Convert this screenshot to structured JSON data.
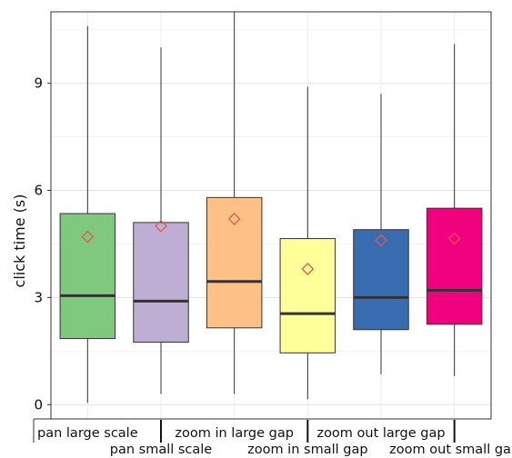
{
  "chart_data": {
    "type": "box",
    "title": "",
    "xlabel": "",
    "ylabel": "click time (s)",
    "ylim": [
      -0.4,
      11.0
    ],
    "yticks": [
      0,
      3,
      6,
      9
    ],
    "ytick_labels": [
      "0",
      "3",
      "6",
      "9"
    ],
    "grid": true,
    "legend": "none",
    "categories": [
      "pan large scale",
      "pan small scale",
      "zoom in large gap",
      "zoom in small gap",
      "zoom out large gap",
      "zoom out small gap"
    ],
    "boxes": [
      {
        "category": "pan large scale",
        "whisker_low": 0.05,
        "q1": 1.85,
        "median": 3.05,
        "q3": 5.35,
        "whisker_high": 10.6,
        "mean": 4.7,
        "color": "#7FC97F"
      },
      {
        "category": "pan small scale",
        "whisker_low": 0.3,
        "q1": 1.75,
        "median": 2.9,
        "q3": 5.1,
        "whisker_high": 10.0,
        "mean": 5.0,
        "color": "#BEAED4"
      },
      {
        "category": "zoom in large gap",
        "whisker_low": 0.3,
        "q1": 2.15,
        "median": 3.45,
        "q3": 5.8,
        "whisker_high": 11.0,
        "mean": 5.2,
        "color": "#FDC086"
      },
      {
        "category": "zoom in small gap",
        "whisker_low": 0.15,
        "q1": 1.45,
        "median": 2.55,
        "q3": 4.65,
        "whisker_high": 8.9,
        "mean": 3.8,
        "color": "#FFFF99"
      },
      {
        "category": "zoom out large gap",
        "whisker_low": 0.85,
        "q1": 2.1,
        "median": 3.0,
        "q3": 4.9,
        "whisker_high": 8.7,
        "mean": 4.6,
        "color": "#386CB0"
      },
      {
        "category": "zoom out small gap",
        "whisker_low": 0.8,
        "q1": 2.25,
        "median": 3.2,
        "q3": 5.5,
        "whisker_high": 10.1,
        "mean": 4.65,
        "color": "#F0027F"
      }
    ],
    "mean_marker_color": "#E8564F"
  }
}
